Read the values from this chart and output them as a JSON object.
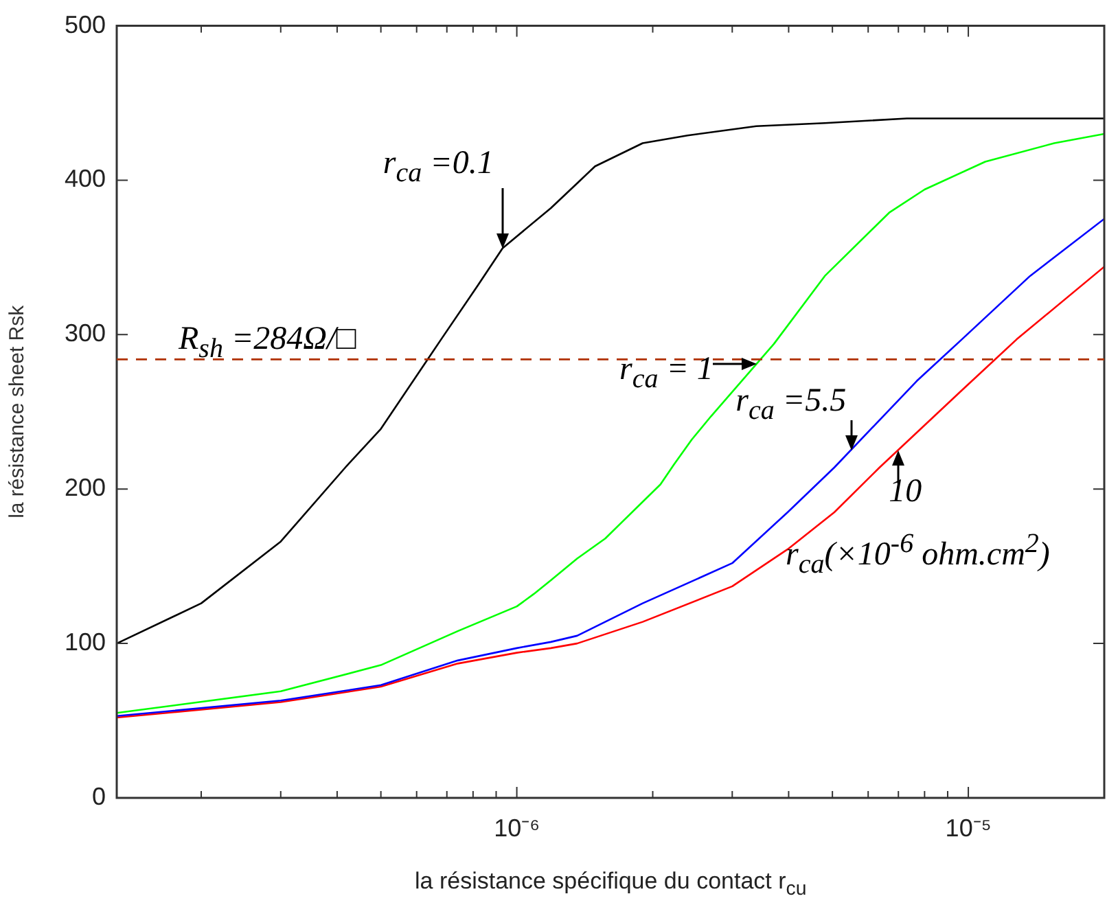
{
  "chart_data": {
    "type": "line",
    "xlabel": "la résistance spécifique du contact r$_{cu}$",
    "ylabel": "la résistance sheet Rsk",
    "log": "x",
    "xlim": [
      1.3e-07,
      2e-05
    ],
    "xticks": [
      {
        "value": 2e-07,
        "label": null
      },
      {
        "value": 3e-07,
        "label": null
      },
      {
        "value": 4e-07,
        "label": null
      },
      {
        "value": 5e-07,
        "label": null
      },
      {
        "value": 6e-07,
        "label": null
      },
      {
        "value": 7e-07,
        "label": null
      },
      {
        "value": 8e-07,
        "label": null
      },
      {
        "value": 9e-07,
        "label": null
      },
      {
        "value": 1e-06,
        "label": "10⁻⁶"
      },
      {
        "value": 2e-06,
        "label": null
      },
      {
        "value": 3e-06,
        "label": null
      },
      {
        "value": 4e-06,
        "label": null
      },
      {
        "value": 5e-06,
        "label": null
      },
      {
        "value": 6e-06,
        "label": null
      },
      {
        "value": 7e-06,
        "label": null
      },
      {
        "value": 8e-06,
        "label": null
      },
      {
        "value": 9e-06,
        "label": null
      },
      {
        "value": 1e-05,
        "label": "10⁻⁵"
      }
    ],
    "ylim": [
      0,
      500
    ],
    "yticks": [
      0,
      100,
      200,
      300,
      400,
      500
    ],
    "series": [
      {
        "color": "#000000",
        "x": [
          1.3e-07,
          2e-07,
          3e-07,
          4.2e-07,
          5e-07,
          6.8e-07,
          8.2e-07,
          9.3e-07,
          1.19e-06,
          1.36e-06,
          1.49e-06,
          1.9e-06,
          2.39e-06,
          3.39e-06,
          4.81e-06,
          7.31e-06,
          2e-05
        ],
        "values": [
          100,
          126,
          166,
          215,
          239,
          297,
          332,
          356,
          382,
          398,
          409,
          424,
          429,
          435,
          437,
          440,
          440
        ]
      },
      {
        "color": "#00ff00",
        "x": [
          1.3e-07,
          3e-07,
          5e-07,
          7.4e-07,
          1e-06,
          1.09e-06,
          1.19e-06,
          1.36e-06,
          1.57e-06,
          2.08e-06,
          2.23e-06,
          2.44e-06,
          2.69e-06,
          3.71e-06,
          4.81e-06,
          6.68e-06,
          8e-06,
          1.09e-05,
          1.55e-05,
          2e-05
        ],
        "values": [
          55,
          69,
          86,
          108,
          124,
          132,
          141,
          155,
          168,
          203,
          216,
          232,
          247,
          294,
          338,
          379,
          394,
          412,
          424,
          430
        ]
      },
      {
        "color": "#0000ff",
        "x": [
          1.3e-07,
          3e-07,
          5e-07,
          7.4e-07,
          1e-06,
          1.19e-06,
          1.36e-06,
          1.9e-06,
          3e-06,
          3.98e-06,
          5.05e-06,
          7.69e-06,
          9.68e-06,
          1.37e-05,
          2e-05
        ],
        "values": [
          53,
          63,
          73,
          89,
          97,
          101,
          105,
          126,
          152,
          185,
          214,
          270,
          297,
          338,
          375
        ]
      },
      {
        "color": "#ff0000",
        "x": [
          1.3e-07,
          3e-07,
          5e-07,
          7.4e-07,
          1e-06,
          1.19e-06,
          1.36e-06,
          1.9e-06,
          3e-06,
          3.98e-06,
          5.05e-06,
          6.36e-06,
          9.68e-06,
          1.28e-05,
          2e-05
        ],
        "values": [
          52,
          62,
          72,
          87,
          94,
          97,
          100,
          114,
          137,
          161,
          185,
          214,
          264,
          297,
          344
        ]
      }
    ],
    "ref_lines": [
      {
        "axis": "y",
        "value": 284,
        "label": "R$_{sh}$ =284Ω/□",
        "color": "#b03000",
        "line_style": "dashed"
      }
    ],
    "annotations": [
      {
        "text": "r$_{ca}$ =0.1",
        "x": 9.3e-07,
        "y": 356
      },
      {
        "text": "r$_{ca}$ = 1",
        "x": 3.4e-06,
        "y": 281
      },
      {
        "text": "r$_{ca}$ =5.5",
        "x": 5.5e-06,
        "y": 225
      },
      {
        "text": "10",
        "x": 7e-06,
        "y": 225
      },
      "r$_{ca}$(×10$^{-6}$ ohm.cm$^{2}$)"
    ]
  }
}
